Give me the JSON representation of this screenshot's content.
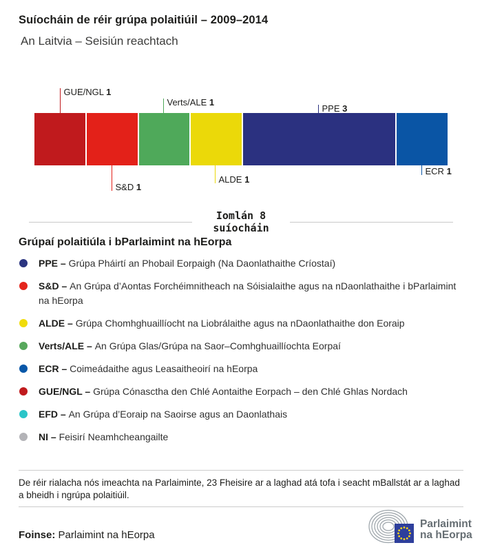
{
  "header": {
    "title": "Suíocháin de réir grúpa polaitiúil – 2009–2014",
    "subtitle": "An Laitvia – Seisiún reachtach"
  },
  "chart_data": {
    "type": "bar",
    "variant": "horizontal-stacked-seats",
    "title": "Suíocháin de réir grúpa polaitiúil – 2009–2014",
    "subtitle": "An Laitvia – Seisiún reachtach",
    "total_seats": 8,
    "total_label_line1": "Iomlán 8",
    "total_label_line2": "suíocháin",
    "segments": [
      {
        "group": "GUE/NGL",
        "seats": 1,
        "color": "#C01A1D",
        "label_side": "above"
      },
      {
        "group": "S&D",
        "seats": 1,
        "color": "#E32119",
        "label_side": "below"
      },
      {
        "group": "Verts/ALE",
        "seats": 1,
        "color": "#4FA95A",
        "label_side": "above"
      },
      {
        "group": "ALDE",
        "seats": 1,
        "color": "#EBD909",
        "label_side": "below"
      },
      {
        "group": "PPE",
        "seats": 3,
        "color": "#2B3180",
        "label_side": "above"
      },
      {
        "group": "ECR",
        "seats": 1,
        "color": "#0A55A5",
        "label_side": "below"
      }
    ]
  },
  "legend": {
    "heading": "Grúpaí polaitiúla i bParlaimint na hEorpa",
    "separator": "–",
    "items": [
      {
        "code": "PPE",
        "color": "#2A3480",
        "description": "Grúpa Pháirtí an Phobail Eorpaigh (Na Daonlathaithe Críostaí)"
      },
      {
        "code": "S&D",
        "color": "#E4251C",
        "description": "An Grúpa d’Aontas Forchéimnitheach na Sóisialaithe agus na nDaonlathaithe i bParlaimint na hEorpa"
      },
      {
        "code": "ALDE",
        "color": "#F0DC0A",
        "description": "Grúpa Chomhghuaillíocht na Liobrálaithe agus na nDaonlathaithe don Eoraip"
      },
      {
        "code": "Verts/ALE",
        "color": "#57A85C",
        "description": "An Grúpa Glas/Grúpa na Saor–Comhghuaillíochta Eorpaí"
      },
      {
        "code": "ECR",
        "color": "#0857A8",
        "description": "Coimeádaithe agus Leasaitheoirí na hEorpa"
      },
      {
        "code": "GUE/NGL",
        "color": "#C01A1D",
        "description": "Grúpa Cónasctha den Chlé Aontaithe Eorpach – den Chlé Ghlas Nordach"
      },
      {
        "code": "EFD",
        "color": "#2BC5C8",
        "description": "An Grúpa d’Eoraip na Saoirse agus an Daonlathais"
      },
      {
        "code": "NI",
        "color": "#B3B3B7",
        "description": "Feisirí Neamhcheangailte"
      }
    ]
  },
  "footnote": "De réir rialacha nós imeachta na Parlaiminte, 23 Fheisire ar a laghad atá tofa i seacht mBallstát ar a laghad a bheidh i ngrúpa polaitiúil.",
  "source": {
    "label": "Foinse:",
    "value": "Parlaimint na hEorpa"
  },
  "logo": {
    "line1": "Parlaimint",
    "line2": "na hEorpa",
    "arc_color": "#9AA2A8",
    "flag_color": "#2E3F9C",
    "star_color": "#FFD617"
  }
}
